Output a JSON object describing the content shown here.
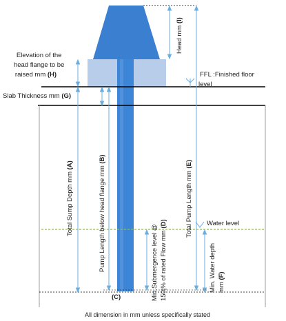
{
  "labels": {
    "head_flange_elevation": [
      "Elevation of the",
      "head flange to be",
      "raised mm "
    ],
    "head_flange_elevation_code": "(H)",
    "head": "Head mm ",
    "head_code": "(I)",
    "ffl": [
      "FFL :Finished floor",
      "level"
    ],
    "slab_thickness": "Slab Thickness mm ",
    "slab_thickness_code": "(G)",
    "total_sump_depth": "Total Sump  Depth mm ",
    "total_sump_depth_code": "(A)",
    "pump_length_below_flange": "Pump Length below head flange mm ",
    "pump_length_below_flange_code": "(B)",
    "total_pump_length": "Total Pump Length  mm ",
    "total_pump_length_code": "(E)",
    "min_submergence": [
      "Min.Submergence   level @",
      "150|% of rated  Flow mm "
    ],
    "min_submergence_code": "(D)",
    "water_level": "Water level",
    "min_water_depth": [
      "Min. Water depth",
      "mm "
    ],
    "min_water_depth_code": "(F)",
    "clearance_code": "(C)",
    "footer": "All dimension in mm unless specifically stated"
  },
  "colors": {
    "pump_head": "#3a7fd0",
    "pump_shaft": "#3d85d6",
    "flange_block": "#b7cdea",
    "water_line": "#8fbf4a",
    "dimension_line": "#6aaee0",
    "structure_line": "#000000",
    "sump_wall": "#9a9a9a"
  }
}
